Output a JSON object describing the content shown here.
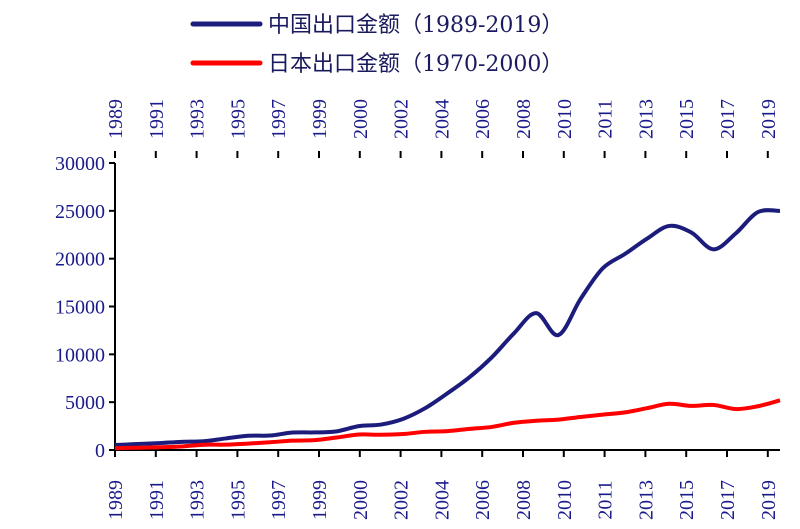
{
  "chart_data": {
    "type": "line",
    "title": "",
    "xlabel": "",
    "ylabel": "",
    "x_tick_labels": [
      "1989",
      "1991",
      "1993",
      "1995",
      "1997",
      "1999",
      "2000",
      "2002",
      "2004",
      "2006",
      "2008",
      "2010",
      "2011",
      "2013",
      "2015",
      "2017",
      "2019"
    ],
    "ylim": [
      0,
      30000
    ],
    "y_ticks": [
      0,
      5000,
      10000,
      15000,
      20000,
      25000,
      30000
    ],
    "grid": false,
    "legend_position": "top",
    "series": [
      {
        "name": "中国出口金额（1989-2019）",
        "color": "#1c1c7c",
        "x": [
          1989,
          1990,
          1991,
          1992,
          1993,
          1994,
          1995,
          1996,
          1997,
          1998,
          1999,
          2000,
          2001,
          2002,
          2003,
          2004,
          2005,
          2006,
          2007,
          2008,
          2009,
          2010,
          2011,
          2012,
          2013,
          2014,
          2015,
          2016,
          2017,
          2018,
          2019
        ],
        "values": [
          525,
          621,
          719,
          849,
          917,
          1210,
          1488,
          1511,
          1828,
          1837,
          1949,
          2492,
          2661,
          3256,
          4382,
          5933,
          7620,
          9689,
          12200,
          14307,
          12016,
          15778,
          18984,
          20487,
          22090,
          23423,
          22735,
          20976,
          22633,
          24867,
          24990
        ]
      },
      {
        "name": "日本出口金额（1970-2000）",
        "color": "#ff0000",
        "x": [
          1970,
          1971,
          1972,
          1973,
          1974,
          1975,
          1976,
          1977,
          1978,
          1979,
          1980,
          1981,
          1982,
          1983,
          1984,
          1985,
          1986,
          1987,
          1988,
          1989,
          1990,
          1991,
          1992,
          1993,
          1994,
          1995,
          1996,
          1997,
          1998,
          1999,
          2000
        ],
        "values": [
          193,
          240,
          290,
          370,
          555,
          558,
          672,
          811,
          979,
          1031,
          1304,
          1620,
          1589,
          1670,
          1901,
          1974,
          2209,
          2412,
          2849,
          3056,
          3177,
          3449,
          3699,
          3929,
          4370,
          4830,
          4609,
          4710,
          4280,
          4575,
          5192
        ]
      }
    ]
  }
}
